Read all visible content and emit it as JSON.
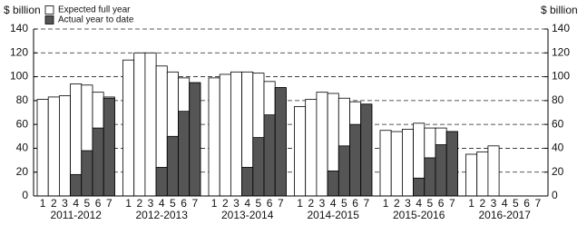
{
  "chart_data": {
    "type": "bar",
    "ylabel": "$ billion",
    "y2label": "$ billion",
    "groups": [
      "2011-2012",
      "2012-2013",
      "2013-2014",
      "2014-2015",
      "2015-2016",
      "2016-2017"
    ],
    "categories": [
      "1",
      "2",
      "3",
      "4",
      "5",
      "6",
      "7",
      "1",
      "2",
      "3",
      "4",
      "5",
      "6",
      "7",
      "1",
      "2",
      "3",
      "4",
      "5",
      "6",
      "7",
      "1",
      "2",
      "3",
      "4",
      "5",
      "6",
      "7",
      "1",
      "2",
      "3",
      "4",
      "5",
      "6",
      "7",
      "1",
      "2",
      "3",
      "4",
      "5",
      "6",
      "7"
    ],
    "series": [
      {
        "name": "Expected full year",
        "color": "#ffffff",
        "values": [
          81,
          83,
          84,
          94,
          93,
          87,
          83,
          114,
          120,
          120,
          109,
          104,
          99,
          95,
          99,
          102,
          104,
          104,
          103,
          96,
          90,
          75,
          81,
          87,
          86,
          82,
          79,
          77,
          55,
          54,
          56,
          61,
          57,
          57,
          54,
          35,
          37,
          42,
          null,
          null,
          null,
          null
        ]
      },
      {
        "name": "Actual year to date",
        "color": "#555555",
        "values": [
          null,
          null,
          null,
          18,
          38,
          57,
          82,
          null,
          null,
          null,
          24,
          50,
          71,
          95,
          null,
          null,
          null,
          24,
          49,
          68,
          91,
          null,
          null,
          null,
          21,
          42,
          60,
          77,
          null,
          null,
          null,
          15,
          32,
          43,
          54,
          null,
          null,
          null,
          null,
          null,
          null,
          null
        ]
      }
    ],
    "ylim": [
      0,
      140
    ],
    "yticks": [
      0,
      20,
      40,
      60,
      80,
      100,
      120,
      140
    ],
    "y2lim": [
      0,
      140
    ],
    "y2ticks": [
      0,
      20,
      40,
      60,
      80,
      100,
      120,
      140
    ],
    "grid": true,
    "legend": "top-left"
  }
}
